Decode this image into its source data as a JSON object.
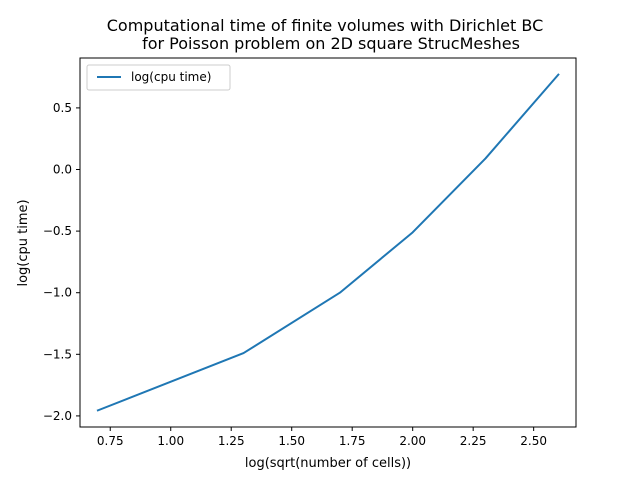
{
  "chart_data": {
    "type": "line",
    "title_lines": [
      "Computational time of finite volumes with Dirichlet BC",
      "for Poisson problem on 2D square StrucMeshes"
    ],
    "xlabel": "log(sqrt(number of cells))",
    "ylabel": "log(cpu time)",
    "xlim": [
      0.625,
      2.675
    ],
    "ylim": [
      -2.09,
      0.905
    ],
    "xticks": [
      0.75,
      1.0,
      1.25,
      1.5,
      1.75,
      2.0,
      2.25,
      2.5
    ],
    "xtick_labels": [
      "0.75",
      "1.00",
      "1.25",
      "1.50",
      "1.75",
      "2.00",
      "2.25",
      "2.50"
    ],
    "yticks": [
      -2.0,
      -1.5,
      -1.0,
      -0.5,
      0.0,
      0.5
    ],
    "ytick_labels": [
      "−2.0",
      "−1.5",
      "−1.0",
      "−0.5",
      "0.0",
      "0.5"
    ],
    "grid": false,
    "legend_position": "top-left",
    "series": [
      {
        "name": "log(cpu time)",
        "color": "#1f77b4",
        "x": [
          0.699,
          1.301,
          1.699,
          2.0,
          2.301,
          2.602
        ],
        "y": [
          -1.955,
          -1.49,
          -1.0,
          -0.51,
          0.09,
          0.77
        ]
      }
    ]
  }
}
